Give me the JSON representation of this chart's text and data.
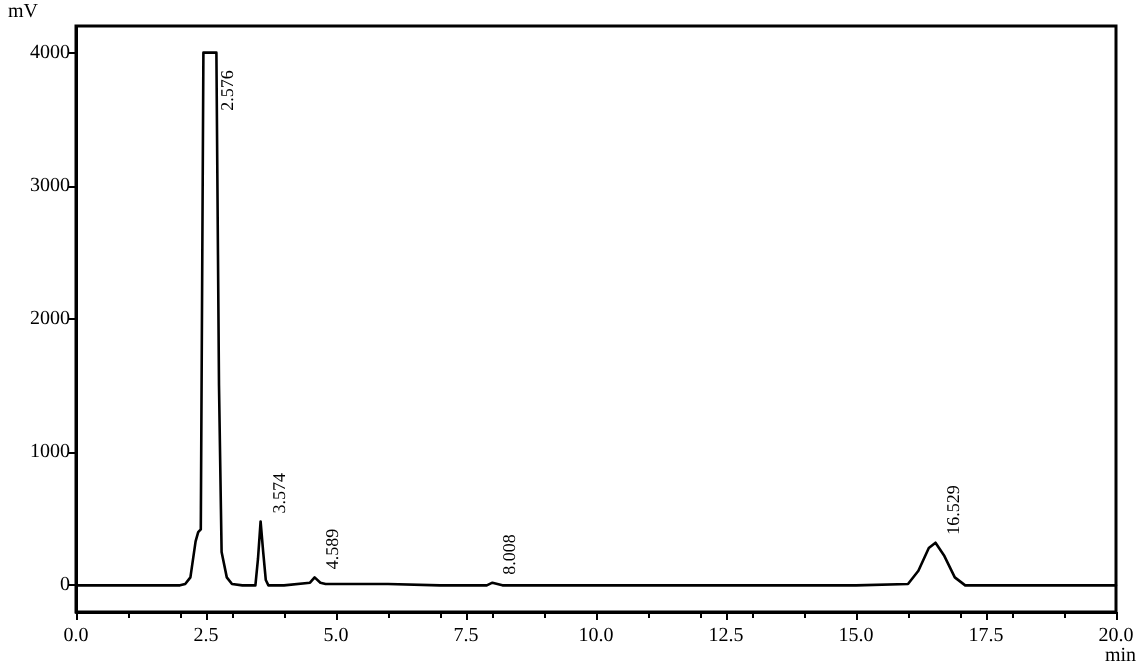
{
  "chart_data": {
    "type": "line",
    "xlabel": "min",
    "ylabel": "mV",
    "x": [
      0,
      1,
      2.0,
      2.1,
      2.2,
      2.3,
      2.35,
      2.4,
      2.45,
      2.7,
      2.75,
      2.8,
      2.9,
      3.0,
      3.2,
      3.45,
      3.5,
      3.55,
      3.6,
      3.65,
      3.7,
      4.0,
      4.5,
      4.589,
      4.7,
      4.8,
      5.0,
      6.0,
      7.0,
      7.9,
      8.008,
      8.2,
      9.0,
      12.0,
      15.0,
      16.0,
      16.2,
      16.4,
      16.529,
      16.7,
      16.9,
      17.1,
      18.0,
      20.0
    ],
    "series": [
      {
        "color": "#000000",
        "values": [
          0,
          0,
          0,
          10,
          60,
          330,
          400,
          420,
          4000,
          4000,
          1500,
          250,
          60,
          10,
          0,
          0,
          200,
          480,
          250,
          40,
          0,
          0,
          20,
          60,
          20,
          10,
          10,
          10,
          0,
          0,
          20,
          0,
          0,
          0,
          0,
          10,
          110,
          280,
          320,
          220,
          60,
          0,
          0,
          0
        ]
      }
    ],
    "xlim": [
      0,
      20
    ],
    "ylim": [
      -200,
      4200
    ],
    "xticks": [
      {
        "value": 0,
        "label": "0.0"
      },
      {
        "value": 2.5,
        "label": "2.5"
      },
      {
        "value": 5,
        "label": "5.0"
      },
      {
        "value": 7.5,
        "label": "7.5"
      },
      {
        "value": 10,
        "label": "10.0"
      },
      {
        "value": 12.5,
        "label": "12.5"
      },
      {
        "value": 15,
        "label": "15.0"
      },
      {
        "value": 17.5,
        "label": "17.5"
      },
      {
        "value": 20,
        "label": "20.0"
      }
    ],
    "yticks": [
      0,
      1000,
      2000,
      3000,
      4000
    ],
    "grid": false,
    "marker": "none",
    "line_style": "solid",
    "annotations": [
      {
        "text": "2.576",
        "x": 2.576,
        "y": 4000
      },
      {
        "text": "3.574",
        "x": 3.574,
        "y": 480
      },
      {
        "text": "4.589",
        "x": 4.589,
        "y": 60
      },
      {
        "text": "8.008",
        "x": 8.008,
        "y": 20
      },
      {
        "text": "16.529",
        "x": 16.529,
        "y": 320
      }
    ]
  }
}
